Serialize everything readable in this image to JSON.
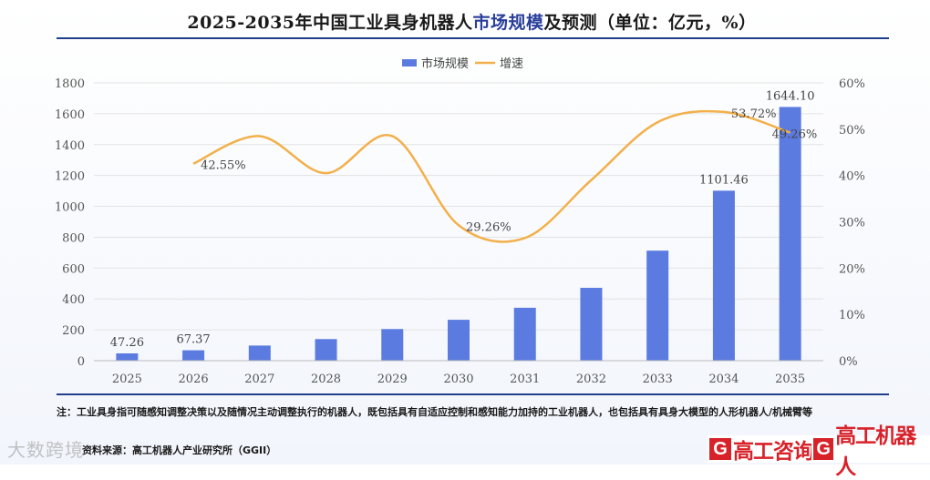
{
  "header": {
    "title_prefix": "2025-2035年中国工业具身机器人",
    "title_highlight": "市场规模",
    "title_suffix": "及预测（单位：亿元，%）"
  },
  "note": "注：工业具身指可随感知调整决策以及随情况主动调整执行的机器人，既包括具有自适应控制和感知能力加持的工业机器人，也包括具有具身大模型的人形机器人/机械臂等",
  "source": "资料来源：高工机器人产业研究所（GGII）",
  "watermark": "大数跨境",
  "logos": {
    "left_mark": "G",
    "left_text": "高工咨询",
    "right_mark": "G",
    "right_text": "高工机器人"
  },
  "colors": {
    "bar": "#5b7be0",
    "line": "#f2b04a",
    "rule": "#1f3f8a",
    "brand_red": "#d8222a"
  },
  "chart_data": {
    "type": "bar",
    "legend": [
      "市场规模",
      "增速"
    ],
    "legend_position": "top-center",
    "categories": [
      "2025",
      "2026",
      "2027",
      "2028",
      "2029",
      "2030",
      "2031",
      "2032",
      "2033",
      "2034",
      "2035"
    ],
    "series": [
      {
        "name": "市场规模",
        "type": "bar",
        "axis": "left",
        "values": [
          47.26,
          67.37,
          98,
          140,
          205,
          265,
          343,
          472,
          713,
          1101.46,
          1644.1
        ]
      },
      {
        "name": "增速",
        "type": "line",
        "axis": "right",
        "values": [
          null,
          42.55,
          48.5,
          40.5,
          48.5,
          29.26,
          26.5,
          39.0,
          51.5,
          53.72,
          49.26
        ]
      }
    ],
    "bar_labels": {
      "0": "47.26",
      "1": "67.37",
      "9": "1101.46",
      "10": "1644.10"
    },
    "line_labels": {
      "1": "42.55%",
      "5": "29.26%",
      "9": "53.72%",
      "10": "49.26%"
    },
    "y_left": {
      "min": 0,
      "max": 1800,
      "ticks": [
        "0",
        "200",
        "400",
        "600",
        "800",
        "1000",
        "1200",
        "1400",
        "1600",
        "1800"
      ]
    },
    "y_right": {
      "min": 0,
      "max": 60,
      "ticks": [
        "0%",
        "10%",
        "20%",
        "30%",
        "40%",
        "50%",
        "60%"
      ]
    },
    "grid": true
  }
}
